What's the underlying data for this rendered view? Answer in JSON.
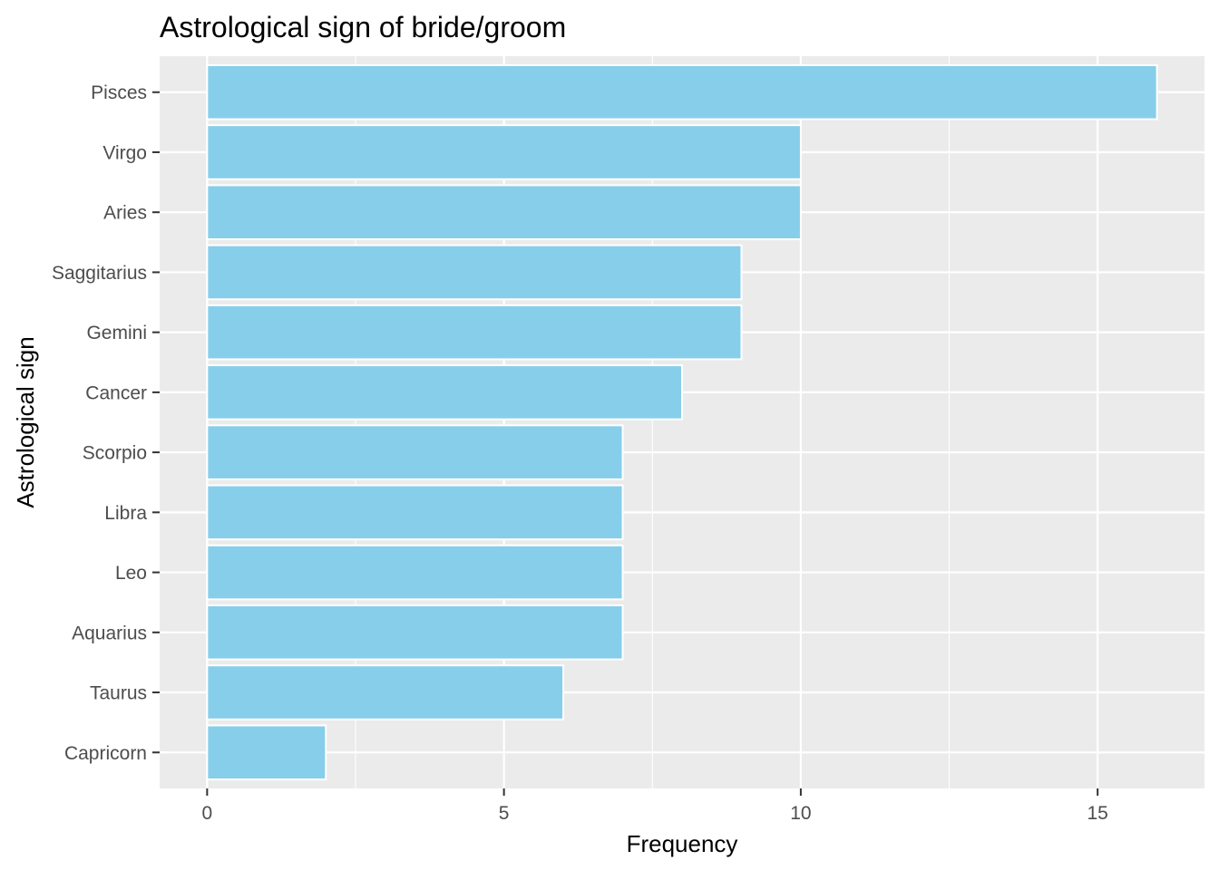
{
  "chart_data": {
    "type": "bar",
    "orientation": "horizontal",
    "title": "Astrological sign of bride/groom",
    "xlabel": "Frequency",
    "ylabel": "Astrological sign",
    "categories": [
      "Pisces",
      "Virgo",
      "Aries",
      "Saggitarius",
      "Gemini",
      "Cancer",
      "Scorpio",
      "Libra",
      "Leo",
      "Aquarius",
      "Taurus",
      "Capricorn"
    ],
    "values": [
      16,
      10,
      10,
      9,
      9,
      8,
      7,
      7,
      7,
      7,
      6,
      2
    ],
    "xlim": [
      -0.8,
      16.8
    ],
    "xticks": [
      0,
      5,
      10,
      15
    ],
    "xtick_labels": [
      "0",
      "5",
      "10",
      "15"
    ],
    "grid": true,
    "colors": {
      "bar_fill": "#87ceeb",
      "bar_outline": "#ffffff",
      "panel_background": "#ebebeb",
      "grid": "#ffffff"
    }
  }
}
